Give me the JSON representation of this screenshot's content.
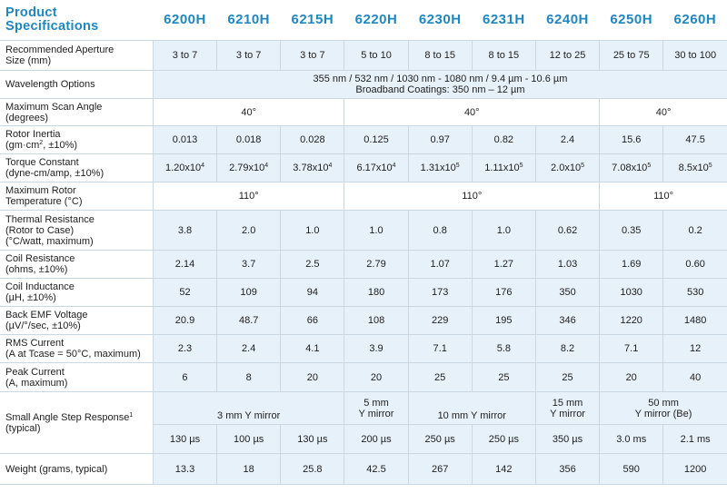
{
  "header": {
    "title_line1": "Product",
    "title_line2": "Specifications",
    "models": [
      "6200H",
      "6210H",
      "6215H",
      "6220H",
      "6230H",
      "6231H",
      "6240H",
      "6250H",
      "6260H"
    ]
  },
  "rows": {
    "aperture": {
      "label1": "Recommended Aperture",
      "label2": "Size (mm)",
      "values": [
        "3 to 7",
        "3 to 7",
        "3 to 7",
        "5 to 10",
        "8 to 15",
        "8 to 15",
        "12 to 25",
        "25 to 75",
        "30 to 100"
      ]
    },
    "wavelength": {
      "label": "Wavelength Options",
      "line1": "355 nm / 532 nm / 1030 nm - 1080 nm / 9.4 µm - 10.6 µm",
      "line2": "Broadband Coatings: 350 nm – 12 µm"
    },
    "scan_angle": {
      "label1": "Maximum Scan Angle",
      "label2": "(degrees)",
      "groups": [
        "40°",
        "40°",
        "40°"
      ]
    },
    "rotor_inertia": {
      "label1": "Rotor Inertia",
      "label2_pre": "(gm·cm",
      "label2_sup": "2",
      "label2_post": ", ±10%)",
      "values": [
        "0.013",
        "0.018",
        "0.028",
        "0.125",
        "0.97",
        "0.82",
        "2.4",
        "15.6",
        "47.5"
      ]
    },
    "torque": {
      "label1": "Torque Constant",
      "label2": "(dyne-cm/amp, ±10%)",
      "values": [
        {
          "base": "1.20x10",
          "exp": "4"
        },
        {
          "base": "2.79x10",
          "exp": "4"
        },
        {
          "base": "3.78x10",
          "exp": "4"
        },
        {
          "base": "6.17x10",
          "exp": "4"
        },
        {
          "base": "1.31x10",
          "exp": "5"
        },
        {
          "base": "1.11x10",
          "exp": "5"
        },
        {
          "base": "2.0x10",
          "exp": "5"
        },
        {
          "base": "7.08x10",
          "exp": "5"
        },
        {
          "base": "8.5x10",
          "exp": "5"
        }
      ]
    },
    "rotor_temp": {
      "label1": "Maximum Rotor",
      "label2": "Temperature (°C)",
      "groups": [
        "110°",
        "110°",
        "110°"
      ]
    },
    "thermal": {
      "label1": "Thermal Resistance",
      "label2": "(Rotor to Case)",
      "label3": "(°C/watt, maximum)",
      "values": [
        "3.8",
        "2.0",
        "1.0",
        "1.0",
        "0.8",
        "1.0",
        "0.62",
        "0.35",
        "0.2"
      ]
    },
    "coil_resistance": {
      "label1": "Coil Resistance",
      "label2": "(ohms, ±10%)",
      "values": [
        "2.14",
        "3.7",
        "2.5",
        "2.79",
        "1.07",
        "1.27",
        "1.03",
        "1.69",
        "0.60"
      ]
    },
    "coil_inductance": {
      "label1": "Coil Inductance",
      "label2": "(µH, ±10%)",
      "values": [
        "52",
        "109",
        "94",
        "180",
        "173",
        "176",
        "350",
        "1030",
        "530"
      ]
    },
    "back_emf": {
      "label1": "Back EMF Voltage",
      "label2": "(µV/°/sec, ±10%)",
      "values": [
        "20.9",
        "48.7",
        "66",
        "108",
        "229",
        "195",
        "346",
        "1220",
        "1480"
      ]
    },
    "rms_current": {
      "label1": "RMS Current",
      "label2": "(A at Tcase = 50°C, maximum)",
      "values": [
        "2.3",
        "2.4",
        "4.1",
        "3.9",
        "7.1",
        "5.8",
        "8.2",
        "7.1",
        "12"
      ]
    },
    "peak_current": {
      "label1": "Peak Current",
      "label2": "(A, maximum)",
      "values": [
        "6",
        "8",
        "20",
        "20",
        "25",
        "25",
        "25",
        "20",
        "40"
      ]
    },
    "step_response": {
      "label1": "Small Angle Step Response",
      "label_sup": "1",
      "label2": "(typical)",
      "mirrors": [
        "3 mm Y mirror",
        "5 mm",
        "Y mirror",
        "10 mm Y mirror",
        "15 mm",
        "Y mirror",
        "50 mm",
        "Y mirror (Be)"
      ],
      "values": [
        "130 µs",
        "100 µs",
        "130 µs",
        "200 µs",
        "250 µs",
        "250 µs",
        "350 µs",
        "3.0 ms",
        "2.1 ms"
      ]
    },
    "weight": {
      "label": "Weight (grams, typical)",
      "values": [
        "13.3",
        "18",
        "25.8",
        "42.5",
        "267",
        "142",
        "356",
        "590",
        "1200"
      ]
    }
  }
}
